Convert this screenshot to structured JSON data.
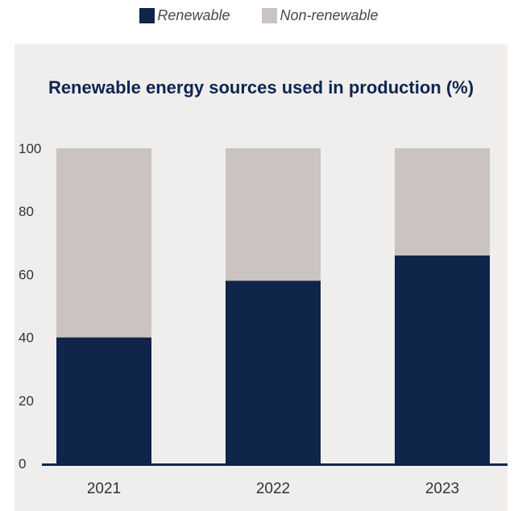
{
  "legend": {
    "renewable": "Renewable",
    "non_renewable": "Non-renewable"
  },
  "colors": {
    "renewable": "#0f2549",
    "non_renewable": "#cbc3bf",
    "panel_background": "#efeeed",
    "title": "#0f2550"
  },
  "chart_data": {
    "type": "bar",
    "stacked": true,
    "title": "Renewable energy sources used in production (%)",
    "xlabel": "",
    "ylabel": "",
    "categories": [
      "2021",
      "2022",
      "2023"
    ],
    "series": [
      {
        "name": "Renewable",
        "values": [
          40,
          58,
          66
        ]
      },
      {
        "name": "Non-renewable",
        "values": [
          60,
          42,
          34
        ]
      }
    ],
    "ylim": [
      0,
      100
    ],
    "yticks": [
      0,
      20,
      40,
      60,
      80,
      100
    ],
    "grid": false,
    "legend_position": "top-center"
  }
}
